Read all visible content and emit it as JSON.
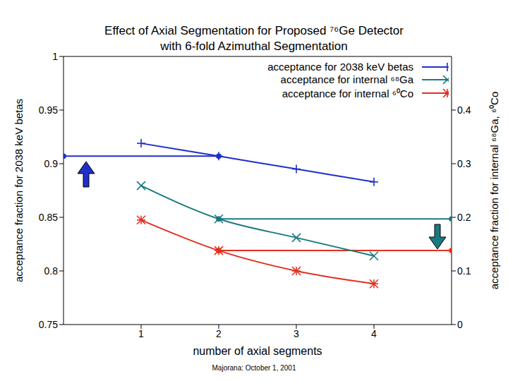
{
  "chart_data": {
    "type": "line",
    "title": "Effect of Axial Segmentation for Proposed ⁷⁶Ge Detector",
    "subtitle": "with 6-fold Azimuthal Segmentation",
    "x_label": "number of axial segments",
    "y_label": "acceptance fraction for 2038 keV betas",
    "y2_label": "acceptance fraction for internal ⁶⁸Ga, ⁶⁰Co",
    "footer": "Majorana: October 1, 2001",
    "x": [
      1,
      2,
      3,
      4
    ],
    "xlim": [
      0,
      5
    ],
    "xticks": [
      1,
      2,
      3,
      4
    ],
    "ylim": [
      0.75,
      1
    ],
    "yticks": [
      0.75,
      0.8,
      0.85,
      0.9,
      0.95,
      1
    ],
    "y2lim": [
      0,
      0.5
    ],
    "y2ticks": [
      0,
      0.1,
      0.2,
      0.3,
      0.4
    ],
    "legend": "upper right",
    "grid": false,
    "series": [
      {
        "name": "acceptance for 2038 keV betas",
        "color": "#1f2fc8",
        "marker": "plus",
        "values": [
          0.919,
          0.907,
          0.895,
          0.883
        ]
      },
      {
        "name": "acceptance for internal ⁶⁸Ga",
        "color": "#1a7a80",
        "marker": "x",
        "axis": "y2",
        "values": [
          0.259,
          0.197,
          0.162,
          0.128
        ]
      },
      {
        "name": "acceptance for internal ⁶⁰Co",
        "color": "#e03020",
        "marker": "star",
        "axis": "y2",
        "values": [
          0.195,
          0.138,
          0.1,
          0.076
        ]
      }
    ],
    "guides": [
      {
        "x": [
          0,
          2
        ],
        "values": [
          0.907,
          0.907
        ],
        "color": "#1f2fc8",
        "marker": "circle"
      },
      {
        "x": [
          2,
          5
        ],
        "values": [
          0.197,
          0.197
        ],
        "axis": "y2",
        "color": "#1a7a80",
        "marker": "circle"
      },
      {
        "x": [
          2,
          5
        ],
        "values": [
          0.138,
          0.138
        ],
        "axis": "y2",
        "color": "#e03020",
        "marker": "circle"
      }
    ]
  }
}
